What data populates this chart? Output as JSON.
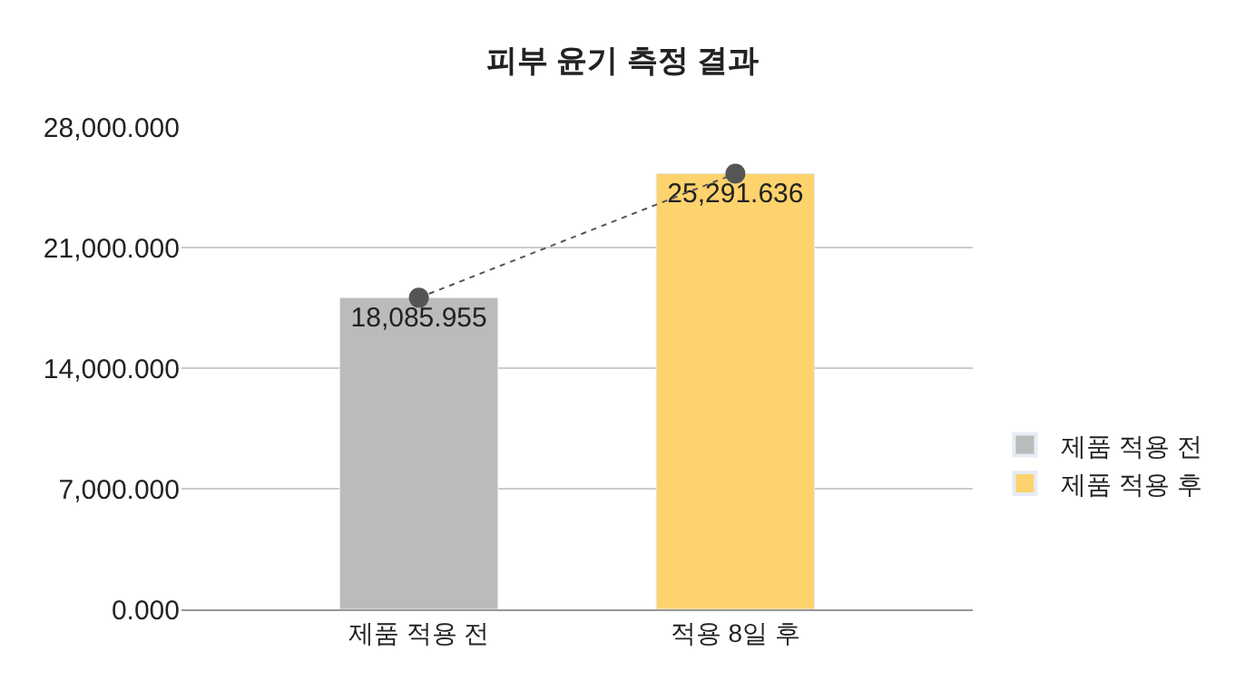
{
  "chart_data": {
    "type": "bar",
    "title": "피부 윤기 측정 결과",
    "categories": [
      "제품 적용 전",
      "적용 8일 후"
    ],
    "series": [
      {
        "name": "제품 적용 전",
        "color": "#bbbbbc",
        "values": [
          18085.955,
          null
        ],
        "value_labels": [
          "18,085.955",
          null
        ]
      },
      {
        "name": "제품 적용 후",
        "color": "#fed36d",
        "values": [
          null,
          25291.636
        ],
        "value_labels": [
          null,
          "25,291.636"
        ]
      },
      {
        "type": "line",
        "color": "#555555",
        "values": [
          18085.955,
          25291.636
        ],
        "marker": "circle",
        "line_style": "dotted"
      }
    ],
    "ylim": [
      0,
      28000
    ],
    "yticks": [
      {
        "value": 0,
        "label": "0.000"
      },
      {
        "value": 7000,
        "label": "7,000.000"
      },
      {
        "value": 14000,
        "label": "14,000.000"
      },
      {
        "value": 21000,
        "label": "21,000.000"
      },
      {
        "value": 28000,
        "label": "28,000.000"
      }
    ],
    "grid": "y",
    "legend": "right"
  }
}
